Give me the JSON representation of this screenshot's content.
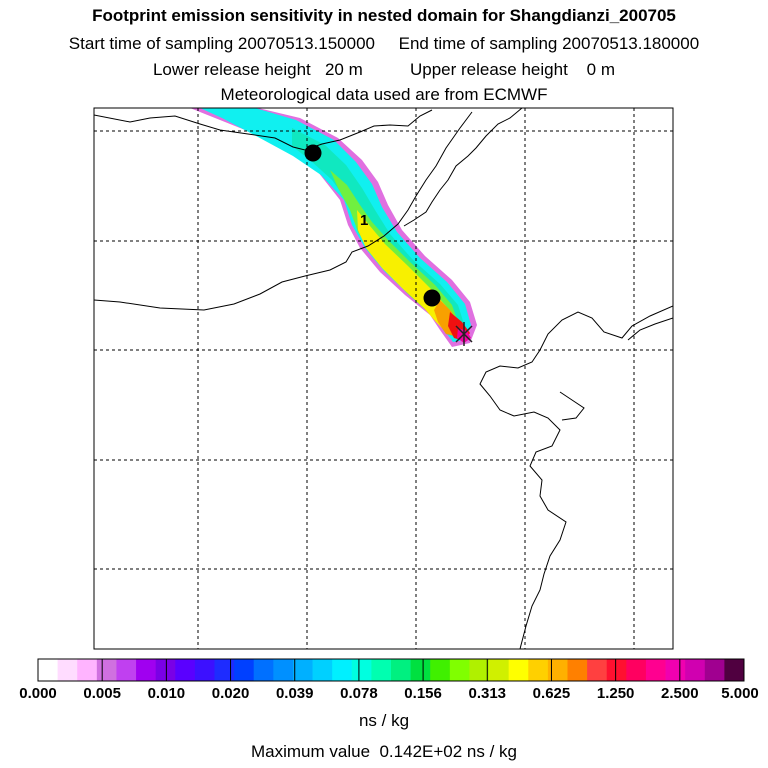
{
  "header": {
    "title": "Footprint emission sensitivity in nested domain for Shangdianzi_200705",
    "sampling_line": "Start time of sampling 20070513.150000     End time of sampling 20070513.180000",
    "release_line": "Lower release height   20 m          Upper release height    0 m",
    "met_line": "Meteorological data used are from ECMWF"
  },
  "map": {
    "contour_label": "1",
    "plume_colors": {
      "outer": "#e070e0",
      "cyan": "#10f0f0",
      "teal": "#10e8c0",
      "green": "#70f040",
      "yellow": "#f8f000",
      "orange": "#f8a000",
      "red": "#f01010",
      "magenta": "#f000a0"
    }
  },
  "colorbar": {
    "segment_colors": [
      "#ffffff",
      "#ffdcff",
      "#ffb4ff",
      "#d070e0",
      "#c040f0",
      "#a000f0",
      "#7a00e6",
      "#5a00ff",
      "#3c10ff",
      "#1e2cff",
      "#0040ff",
      "#0070ff",
      "#0090ff",
      "#00b0ff",
      "#00d0ff",
      "#00f0ff",
      "#00ffe0",
      "#00ffb0",
      "#00f080",
      "#00e040",
      "#40f000",
      "#80ff00",
      "#b0f000",
      "#d0f000",
      "#ffff00",
      "#ffd000",
      "#ffb000",
      "#ff8000",
      "#ff4040",
      "#ff1030",
      "#ff0060",
      "#ff0090",
      "#f000b0",
      "#d000b0",
      "#a00090",
      "#500040"
    ],
    "tick_labels": [
      "0.000",
      "0.005",
      "0.010",
      "0.020",
      "0.039",
      "0.078",
      "0.156",
      "0.313",
      "0.625",
      "1.250",
      "2.500",
      "5.000"
    ],
    "units": "ns / kg"
  },
  "footer": {
    "max_value": "Maximum value  0.142E+02 ns / kg"
  }
}
